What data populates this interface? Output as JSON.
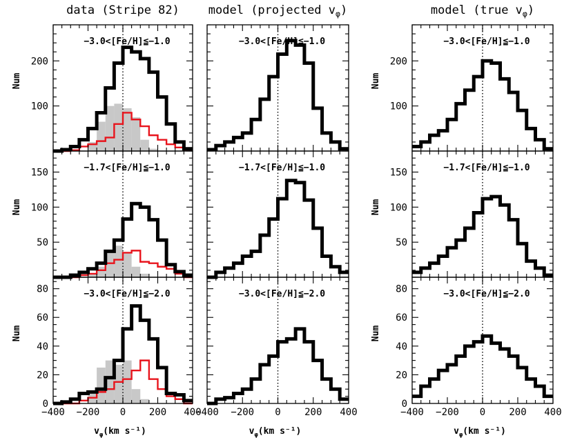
{
  "chart_data": {
    "type": "histogram",
    "x_bins": [
      -400,
      -350,
      -300,
      -250,
      -200,
      -150,
      -100,
      -50,
      0,
      50,
      100,
      150,
      200,
      250,
      300,
      350,
      400
    ],
    "xlim": [
      -400,
      400
    ],
    "xticks": [
      -400,
      -200,
      0,
      200,
      400
    ],
    "xlabel": "vφ(km s⁻¹)",
    "ylabel": "Num",
    "columns": [
      {
        "title": "data (Stripe 82)",
        "show_gray_red": true
      },
      {
        "title": "model (projected vφ)",
        "show_gray_red": false
      },
      {
        "title": "model (true vφ)",
        "show_gray_red": false
      }
    ],
    "rows": [
      {
        "annotation": "−3.0<[Fe/H]≦−1.0",
        "ylim": [
          0,
          280
        ],
        "yticks": [
          100,
          200
        ]
      },
      {
        "annotation": "−1.7<[Fe/H]≦−1.0",
        "ylim": [
          0,
          180
        ],
        "yticks": [
          50,
          100,
          150
        ]
      },
      {
        "annotation": "−3.0<[Fe/H]≦−2.0",
        "ylim": [
          0,
          88
        ],
        "yticks": [
          0,
          20,
          40,
          60,
          80
        ]
      }
    ],
    "panels": [
      [
        {
          "black": [
            0,
            3,
            10,
            25,
            50,
            85,
            140,
            195,
            230,
            220,
            205,
            175,
            120,
            60,
            20,
            5
          ],
          "red": [
            0,
            0,
            2,
            10,
            15,
            22,
            30,
            60,
            85,
            70,
            55,
            35,
            25,
            15,
            8,
            3
          ],
          "gray": [
            0,
            0,
            0,
            0,
            20,
            65,
            100,
            105,
            95,
            75,
            25,
            5,
            0,
            0,
            0,
            0
          ]
        },
        {
          "black": [
            3,
            12,
            20,
            30,
            40,
            70,
            115,
            165,
            215,
            245,
            235,
            195,
            95,
            40,
            20,
            5
          ]
        },
        {
          "black": [
            10,
            20,
            35,
            45,
            70,
            105,
            135,
            165,
            200,
            195,
            160,
            130,
            90,
            50,
            25,
            5
          ]
        }
      ],
      [
        {
          "black": [
            0,
            0,
            3,
            7,
            12,
            20,
            37,
            53,
            83,
            105,
            100,
            82,
            53,
            18,
            8,
            3
          ],
          "red": [
            0,
            0,
            0,
            3,
            5,
            10,
            20,
            25,
            35,
            38,
            22,
            20,
            15,
            12,
            5,
            0
          ],
          "gray": [
            0,
            0,
            0,
            0,
            5,
            15,
            37,
            45,
            35,
            15,
            5,
            0,
            0,
            0,
            0,
            0
          ]
        },
        {
          "black": [
            0,
            7,
            13,
            20,
            30,
            37,
            60,
            83,
            112,
            138,
            135,
            110,
            70,
            30,
            15,
            7
          ]
        },
        {
          "black": [
            7,
            13,
            20,
            30,
            42,
            53,
            70,
            92,
            112,
            115,
            103,
            82,
            48,
            23,
            13,
            3
          ]
        }
      ],
      [
        {
          "black": [
            0,
            1,
            3,
            7,
            8,
            10,
            18,
            30,
            52,
            68,
            58,
            45,
            25,
            7,
            6,
            2
          ],
          "red": [
            0,
            0,
            0,
            2,
            4,
            8,
            10,
            15,
            17,
            23,
            30,
            17,
            10,
            5,
            3,
            0
          ],
          "gray": [
            0,
            0,
            0,
            0,
            7,
            25,
            30,
            27,
            30,
            10,
            3,
            0,
            0,
            0,
            0,
            0
          ]
        },
        {
          "black": [
            0,
            3,
            4,
            7,
            10,
            17,
            27,
            33,
            43,
            45,
            52,
            43,
            30,
            17,
            10,
            3
          ]
        },
        {
          "black": [
            5,
            12,
            17,
            23,
            27,
            33,
            40,
            43,
            47,
            42,
            38,
            33,
            25,
            17,
            12,
            5
          ]
        }
      ]
    ]
  }
}
